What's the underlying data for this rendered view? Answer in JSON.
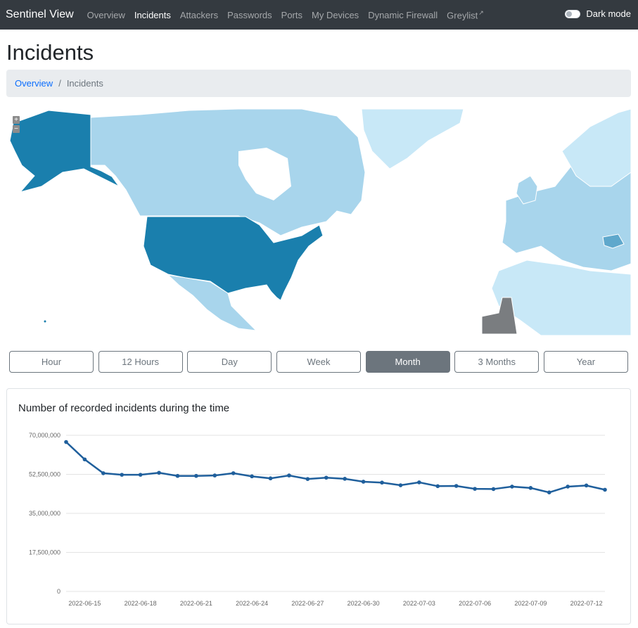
{
  "nav": {
    "brand": "Sentinel View",
    "items": [
      {
        "label": "Overview",
        "active": false
      },
      {
        "label": "Incidents",
        "active": true
      },
      {
        "label": "Attackers",
        "active": false
      },
      {
        "label": "Passwords",
        "active": false
      },
      {
        "label": "Ports",
        "active": false
      },
      {
        "label": "My Devices",
        "active": false
      },
      {
        "label": "Dynamic Firewall",
        "active": false
      },
      {
        "label": "Greylist",
        "active": false
      }
    ],
    "external_icon": "external-link-icon",
    "dark_mode_label": "Dark mode",
    "dark_mode_on": false
  },
  "page": {
    "title": "Incidents",
    "breadcrumb": [
      {
        "label": "Overview"
      },
      {
        "label": "Incidents"
      }
    ]
  },
  "map": {
    "zoom_in": "+",
    "zoom_out": "−",
    "colors": {
      "high": "#1a7fad",
      "medium": "#a8d5ec",
      "low": "#c8e8f7",
      "none": "#7a7d80",
      "special": "#5fa8cc"
    }
  },
  "ranges": [
    "Hour",
    "12 Hours",
    "Day",
    "Week",
    "Month",
    "3 Months",
    "Year"
  ],
  "active_range": "Month",
  "chart_data": {
    "type": "line",
    "title": "Number of recorded incidents during the time",
    "ylim": [
      0,
      70000000
    ],
    "y_ticks": [
      "70,000,000",
      "52,500,000",
      "35,000,000",
      "17,500,000",
      "0"
    ],
    "y_tick_values": [
      70000000,
      52500000,
      35000000,
      17500000,
      0
    ],
    "x_tick_labels": [
      "2022-06-15",
      "2022-06-18",
      "2022-06-21",
      "2022-06-24",
      "2022-06-27",
      "2022-06-30",
      "2022-07-03",
      "2022-07-06",
      "2022-07-09",
      "2022-07-12"
    ],
    "x": [
      "2022-06-14",
      "2022-06-15",
      "2022-06-16",
      "2022-06-17",
      "2022-06-18",
      "2022-06-19",
      "2022-06-20",
      "2022-06-21",
      "2022-06-22",
      "2022-06-23",
      "2022-06-24",
      "2022-06-25",
      "2022-06-26",
      "2022-06-27",
      "2022-06-28",
      "2022-06-29",
      "2022-06-30",
      "2022-07-01",
      "2022-07-02",
      "2022-07-03",
      "2022-07-04",
      "2022-07-05",
      "2022-07-06",
      "2022-07-07",
      "2022-07-08",
      "2022-07-09",
      "2022-07-10",
      "2022-07-11",
      "2022-07-12",
      "2022-07-13"
    ],
    "values": [
      67000000,
      59200000,
      53000000,
      52300000,
      52300000,
      53200000,
      51800000,
      51800000,
      52000000,
      53000000,
      51600000,
      50700000,
      52000000,
      50400000,
      51000000,
      50500000,
      49200000,
      48800000,
      47600000,
      48900000,
      47200000,
      47300000,
      46000000,
      45900000,
      47000000,
      46400000,
      44400000,
      47000000,
      47500000,
      45600000
    ],
    "line_color": "#1f5f9c",
    "grid": true
  }
}
